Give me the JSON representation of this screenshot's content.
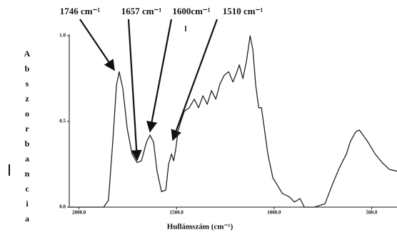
{
  "chart_data": {
    "type": "line",
    "y_label": "Abszorbancia",
    "x_label": "Hullámszám (cm⁻¹)",
    "annotations": [
      "1746 cm⁻¹",
      "1657 cm⁻¹",
      "1600cm⁻¹",
      "1510 cm⁻¹"
    ],
    "color": "#222222",
    "x": [
      2050,
      1874,
      1849,
      1827,
      1808,
      1794,
      1775,
      1753,
      1728,
      1702,
      1680,
      1654,
      1636,
      1618,
      1600,
      1577,
      1555,
      1541,
      1526,
      1515,
      1504,
      1493,
      1478,
      1460,
      1435,
      1409,
      1387,
      1365,
      1343,
      1321,
      1299,
      1277,
      1255,
      1233,
      1211,
      1197,
      1178,
      1160,
      1142,
      1123,
      1109,
      1094,
      1079,
      1065,
      1050,
      1032,
      1006,
      984,
      958,
      922,
      896,
      867,
      845,
      794,
      739,
      702,
      665,
      629,
      610,
      596,
      581,
      563,
      544,
      519,
      482,
      446,
      409,
      370
    ],
    "values": [
      0,
      0,
      0.04,
      0.38,
      0.71,
      0.79,
      0.69,
      0.46,
      0.31,
      0.26,
      0.27,
      0.38,
      0.42,
      0.38,
      0.21,
      0.09,
      0.1,
      0.25,
      0.31,
      0.27,
      0.34,
      0.44,
      0.5,
      0.56,
      0.58,
      0.63,
      0.58,
      0.65,
      0.6,
      0.68,
      0.63,
      0.72,
      0.77,
      0.79,
      0.73,
      0.77,
      0.83,
      0.75,
      0.85,
      1.0,
      0.92,
      0.71,
      0.58,
      0.58,
      0.46,
      0.31,
      0.17,
      0.13,
      0.08,
      0.06,
      0.03,
      0.05,
      0,
      0,
      0.02,
      0.13,
      0.23,
      0.31,
      0.38,
      0.41,
      0.44,
      0.45,
      0.42,
      0.38,
      0.31,
      0.26,
      0.22,
      0.21
    ],
    "xlim": [
      2050,
      370
    ],
    "ylim": [
      0,
      1.0
    ],
    "xticks": [
      {
        "value": 2000,
        "label": "2000.0"
      },
      {
        "value": 1500,
        "label": "1500.0"
      },
      {
        "value": 1000,
        "label": "1000.0"
      },
      {
        "value": 500,
        "label": "500.0"
      }
    ],
    "yticks": [
      {
        "value": 0,
        "label": "0.0"
      },
      {
        "value": 0.5,
        "label": "0.5"
      },
      {
        "value": 1,
        "label": "1.0"
      }
    ]
  }
}
